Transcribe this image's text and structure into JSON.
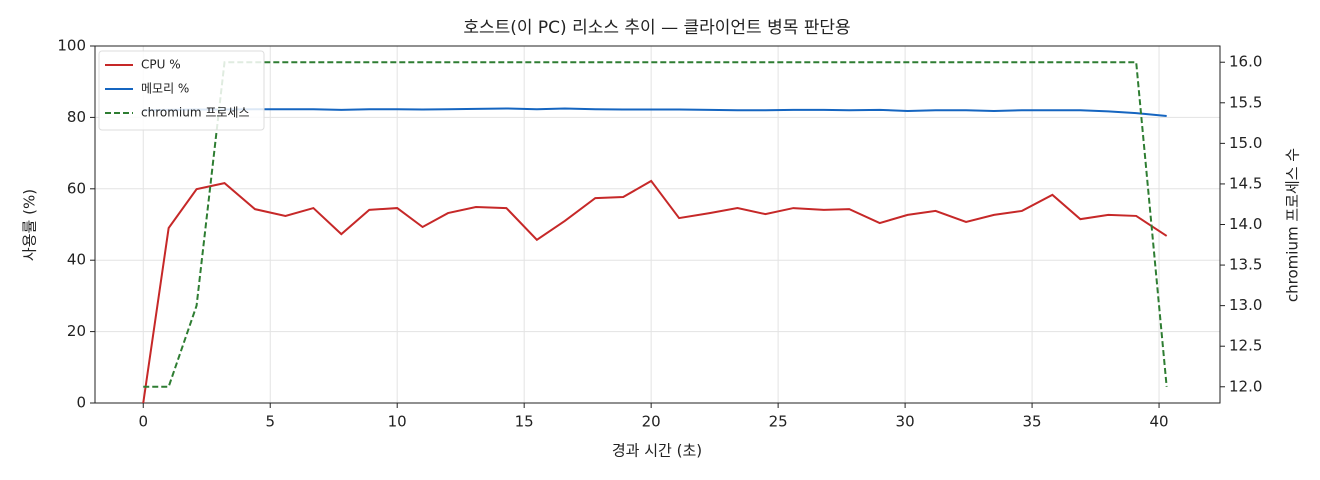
{
  "chart_data": {
    "type": "line",
    "title": "호스트(이 PC) 리소스 추이 — 클라이언트 병목 판단용",
    "xlabel": "경과 시간 (초)",
    "ylabel": "사용률 (%)",
    "y2label": "chromium 프로세스 수",
    "x": [
      0,
      1.0,
      2.1,
      3.2,
      4.4,
      5.6,
      6.7,
      7.8,
      8.9,
      10.0,
      11.0,
      12.0,
      13.1,
      14.3,
      15.5,
      16.6,
      17.8,
      18.9,
      20.0,
      21.1,
      22.3,
      23.4,
      24.5,
      25.6,
      26.8,
      27.8,
      29.0,
      30.1,
      31.2,
      32.4,
      33.5,
      34.6,
      35.8,
      36.9,
      38.0,
      39.1,
      40.3
    ],
    "series": [
      {
        "name": "CPU %",
        "color": "#c62828",
        "dash": false,
        "values": [
          0,
          49.0,
          59.9,
          61.6,
          54.3,
          52.4,
          54.6,
          47.3,
          54.1,
          54.6,
          49.3,
          53.2,
          54.9,
          54.6,
          45.7,
          51.0,
          57.4,
          57.7,
          62.2,
          51.8,
          53.2,
          54.6,
          52.9,
          54.6,
          54.1,
          54.3,
          50.4,
          52.7,
          53.8,
          50.7,
          52.7,
          53.8,
          58.3,
          51.5,
          52.7,
          52.4,
          46.8
        ]
      },
      {
        "name": "메모리 %",
        "color": "#1565c0",
        "dash": false,
        "values": [
          82.0,
          82.1,
          82.2,
          82.2,
          82.3,
          82.3,
          82.3,
          82.1,
          82.3,
          82.3,
          82.2,
          82.3,
          82.4,
          82.5,
          82.3,
          82.5,
          82.3,
          82.2,
          82.2,
          82.2,
          82.1,
          82.0,
          82.0,
          82.1,
          82.1,
          82.0,
          82.1,
          81.8,
          82.0,
          82.0,
          81.8,
          82.0,
          82.0,
          82.0,
          81.7,
          81.2,
          80.4
        ]
      },
      {
        "name": "chromium 프로세스",
        "color": "#2e7d32",
        "dash": true,
        "axis": "y2",
        "values": [
          12,
          12,
          13,
          16,
          16,
          16,
          16,
          16,
          16,
          16,
          16,
          16,
          16,
          16,
          16,
          16,
          16,
          16,
          16,
          16,
          16,
          16,
          16,
          16,
          16,
          16,
          16,
          16,
          16,
          16,
          16,
          16,
          16,
          16,
          16,
          16,
          12
        ]
      }
    ],
    "xlim": [
      -1.9,
      42.4
    ],
    "xticks": [
      0,
      5,
      10,
      15,
      20,
      25,
      30,
      35,
      40
    ],
    "ylim": [
      0,
      100
    ],
    "yticks": [
      0,
      20,
      40,
      60,
      80,
      100
    ],
    "y2lim": [
      11.8,
      16.2
    ],
    "y2ticks": [
      {
        "value": 12,
        "label": "12.0"
      },
      {
        "value": 12.5,
        "label": "12.5"
      },
      {
        "value": 13,
        "label": "13.0"
      },
      {
        "value": 13.5,
        "label": "13.5"
      },
      {
        "value": 14,
        "label": "14.0"
      },
      {
        "value": 14.5,
        "label": "14.5"
      },
      {
        "value": 15,
        "label": "15.0"
      },
      {
        "value": 15.5,
        "label": "15.5"
      },
      {
        "value": 16,
        "label": "16.0"
      }
    ],
    "grid": true,
    "legend": "upper left"
  }
}
